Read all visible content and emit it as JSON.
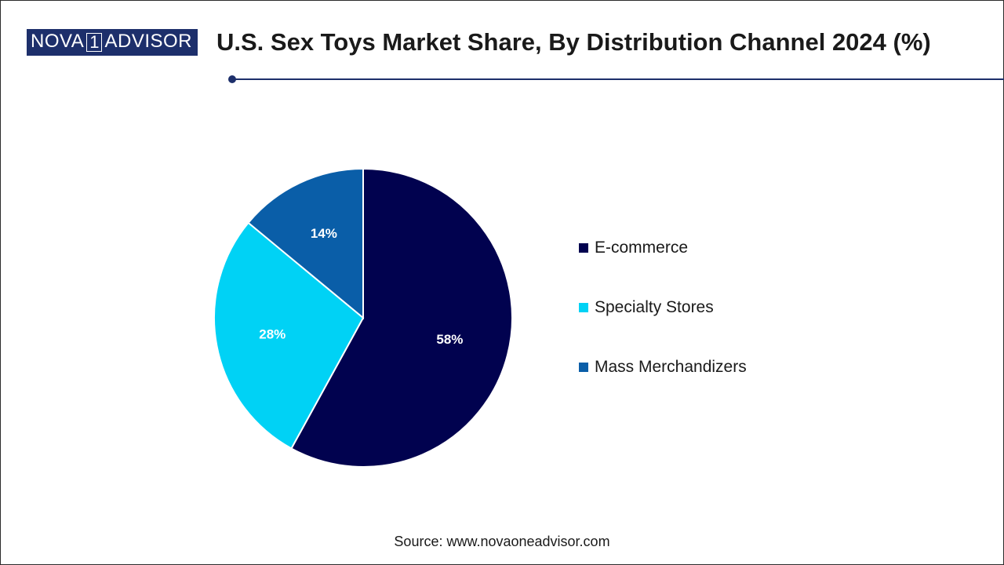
{
  "header": {
    "logo": {
      "part1": "NOVA",
      "part2": "1",
      "part3": "ADVISOR"
    },
    "title": "U.S. Sex Toys Market Share, By Distribution Channel 2024 (%)"
  },
  "chart_data": {
    "type": "pie",
    "title": "U.S. Sex Toys Market Share, By Distribution Channel 2024 (%)",
    "categories": [
      "E-commerce",
      "Specialty Stores",
      "Mass Merchandizers"
    ],
    "values": [
      58,
      28,
      14
    ],
    "labels": [
      "58%",
      "28%",
      "14%"
    ],
    "colors": [
      "#01024f",
      "#00d2f5",
      "#0a5ea8"
    ],
    "legend_position": "right"
  },
  "legend": {
    "items": [
      {
        "label": "E-commerce",
        "color": "#01024f"
      },
      {
        "label": "Specialty Stores",
        "color": "#00d2f5"
      },
      {
        "label": "Mass Merchandizers",
        "color": "#0a5ea8"
      }
    ]
  },
  "footer": {
    "source": "Source: www.novaoneadvisor.com"
  }
}
